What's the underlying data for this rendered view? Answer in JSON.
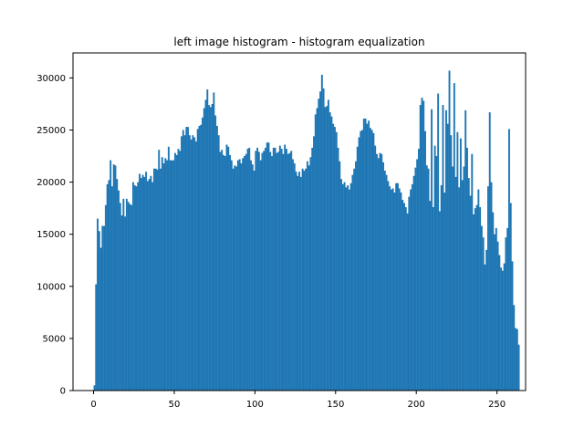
{
  "chart_data": {
    "type": "bar",
    "title": "left image histogram - histogram equalization",
    "xlabel": "",
    "ylabel": "",
    "xlim": [
      -12.75,
      267.75
    ],
    "ylim": [
      0,
      32400
    ],
    "x_ticks": [
      0,
      50,
      100,
      150,
      200,
      250
    ],
    "y_ticks": [
      0,
      5000,
      10000,
      15000,
      20000,
      25000,
      30000
    ],
    "x_tick_labels": [
      "0",
      "50",
      "100",
      "150",
      "200",
      "250"
    ],
    "y_tick_labels": [
      "0",
      "5000",
      "10000",
      "15000",
      "20000",
      "25000",
      "30000"
    ],
    "bar_color": "#1f77b4",
    "grid": false,
    "bins": {
      "start": 0,
      "width": 1
    },
    "values": [
      500,
      10200,
      16500,
      15300,
      13700,
      15800,
      15800,
      17800,
      19800,
      20200,
      22100,
      19600,
      21700,
      21600,
      20300,
      19200,
      18000,
      16800,
      18400,
      16700,
      18400,
      18100,
      17900,
      17800,
      20000,
      19700,
      19600,
      20000,
      20800,
      20400,
      20700,
      20500,
      21000,
      20100,
      20300,
      20600,
      20000,
      21300,
      21300,
      21200,
      23100,
      21300,
      22400,
      21800,
      22300,
      22100,
      23400,
      22100,
      22100,
      22100,
      22800,
      22600,
      23200,
      23000,
      24400,
      25000,
      24500,
      25300,
      25300,
      24500,
      24100,
      24500,
      24300,
      23900,
      25100,
      25400,
      25500,
      26200,
      27100,
      27900,
      28900,
      27400,
      27200,
      27500,
      28600,
      26400,
      25400,
      24500,
      22900,
      23100,
      22600,
      22500,
      23600,
      23400,
      22600,
      22100,
      21300,
      21600,
      21500,
      22100,
      22200,
      21800,
      22300,
      22500,
      22700,
      23200,
      23300,
      22100,
      21700,
      21100,
      23000,
      23300,
      22900,
      22100,
      22800,
      23000,
      23300,
      23800,
      23800,
      22900,
      22500,
      23300,
      23300,
      22800,
      22900,
      23500,
      23200,
      22700,
      23600,
      23200,
      22700,
      22800,
      23000,
      22200,
      21800,
      21000,
      20600,
      21000,
      20500,
      21300,
      21100,
      21300,
      22000,
      21600,
      22400,
      23300,
      24400,
      26500,
      27100,
      28000,
      28700,
      30300,
      29000,
      27200,
      27300,
      27900,
      26700,
      26300,
      25600,
      25300,
      24800,
      23300,
      22000,
      20300,
      19800,
      20000,
      19500,
      19700,
      19300,
      19900,
      20700,
      21300,
      22000,
      23400,
      24300,
      24900,
      25000,
      26100,
      26100,
      25600,
      25900,
      25200,
      25000,
      24700,
      23500,
      22700,
      22300,
      22800,
      22700,
      21900,
      21100,
      20700,
      20100,
      19600,
      19300,
      19400,
      19000,
      19900,
      19900,
      19400,
      19000,
      18300,
      18000,
      17600,
      17000,
      18600,
      19300,
      19800,
      20600,
      21400,
      22200,
      23200,
      27400,
      28100,
      27800,
      24900,
      21600,
      21300,
      18200,
      27000,
      17600,
      23500,
      22500,
      28500,
      17200,
      19700,
      27400,
      19000,
      26900,
      25600,
      30700,
      24500,
      21500,
      29500,
      20500,
      24800,
      19500,
      24200,
      20200,
      21500,
      26900,
      23300,
      20400,
      18700,
      22700,
      16900,
      17500,
      17800,
      19300,
      17600,
      15800,
      14700,
      12100,
      13500,
      19600,
      26700,
      20000,
      17100,
      15000,
      15600,
      14300,
      13000,
      11800,
      11500,
      12200,
      14700,
      15600,
      25100,
      18000,
      12400,
      8200,
      6000,
      5900,
      4400
    ]
  }
}
